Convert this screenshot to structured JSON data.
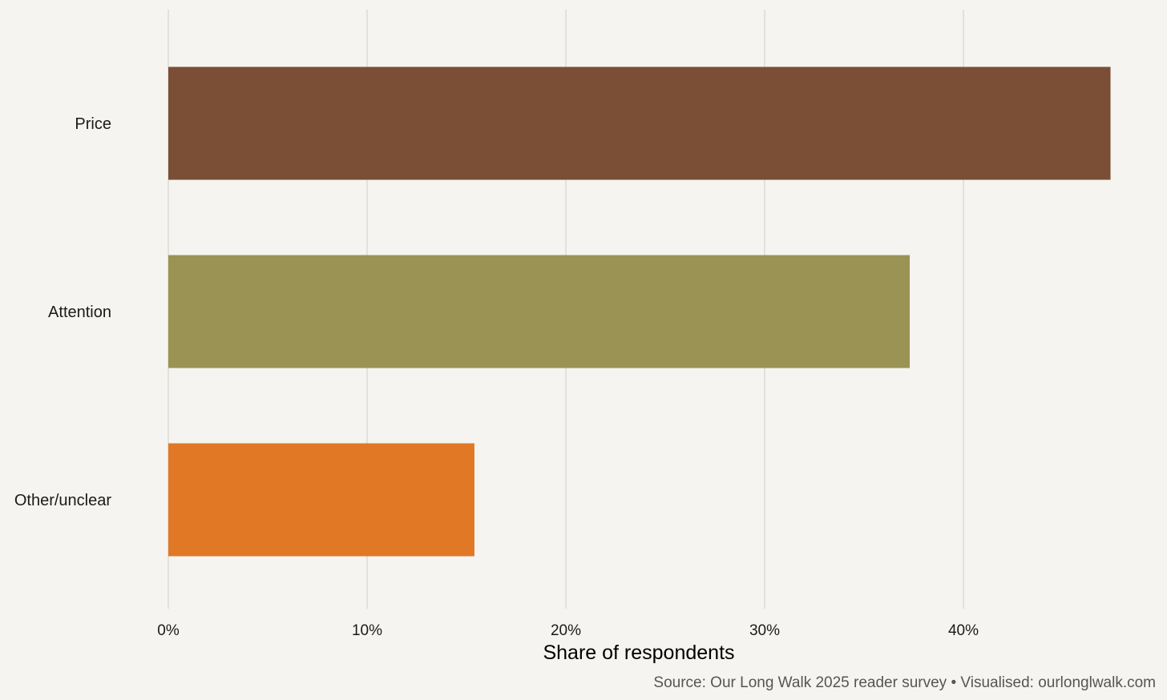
{
  "chart_data": {
    "type": "bar",
    "orientation": "horizontal",
    "categories": [
      "Price",
      "Attention",
      "Other/unclear"
    ],
    "values": [
      47.4,
      37.3,
      15.4
    ],
    "colors": [
      "#7a4f36",
      "#9a9354",
      "#e07826"
    ],
    "xlabel": "Share of respondents",
    "ylabel": "",
    "xlim": [
      0,
      50
    ],
    "xticks": [
      0,
      10,
      20,
      30,
      40
    ],
    "xtick_labels": [
      "0%",
      "10%",
      "20%",
      "30%",
      "40%"
    ],
    "grid": "vertical major",
    "legend": "none",
    "caption": "Source: Our Long Walk 2025 reader survey • Visualised: ourlonglwalk.com"
  }
}
